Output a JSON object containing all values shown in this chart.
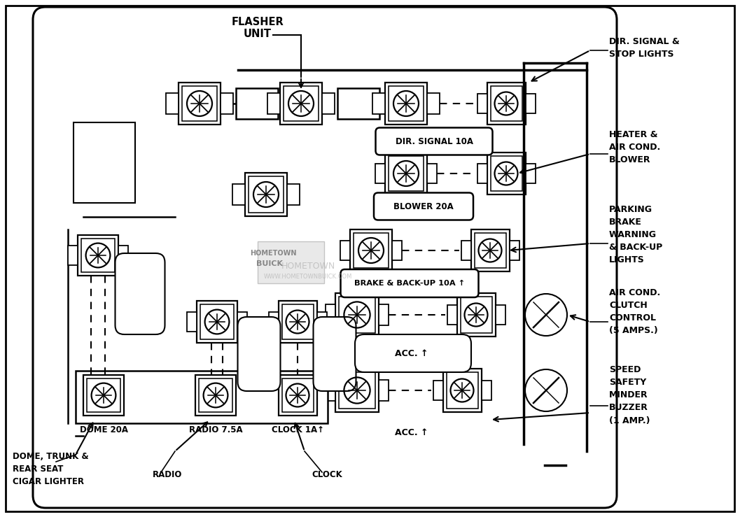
{
  "bg_color": "#ffffff",
  "lc": "#000000",
  "labels": {
    "flasher_unit": "FLASHER\nUNIT",
    "dir_signal_stop": "DIR. SIGNAL &\nSTOP LIGHTS",
    "heater_air": "HEATER &\nAIR COND.\nBLOWER",
    "parking_brake": "PARKING\nBRAKE\nWARNING\n& BACK-UP\nLIGHTS",
    "air_cond_clutch": "AIR COND.\nCLUTCH\nCONTROL\n(5 AMPS.)",
    "speed_safety": "SPEED\nSAFETY\nMINDER\nBUZZER\n(1 AMP.)",
    "dome_trunk": "DOME, TRUNK &\nREAR SEAT\nCIGAR LIGHTER",
    "radio_label": "RADIO",
    "clock_label": "CLOCK",
    "dir_signal_fuse": "DIR. SIGNAL 10A",
    "blower_fuse": "BLOWER 20A",
    "brake_backup_fuse": "BRAKE & BACK-UP 10A ↑",
    "acc_upper": "ACC. ↑",
    "acc_lower": "ACC. ↑",
    "dome_fuse": "DOME 20A",
    "radio_fuse": "RADIO 7.5A",
    "clock_fuse": "CLOCK 1A↑"
  }
}
